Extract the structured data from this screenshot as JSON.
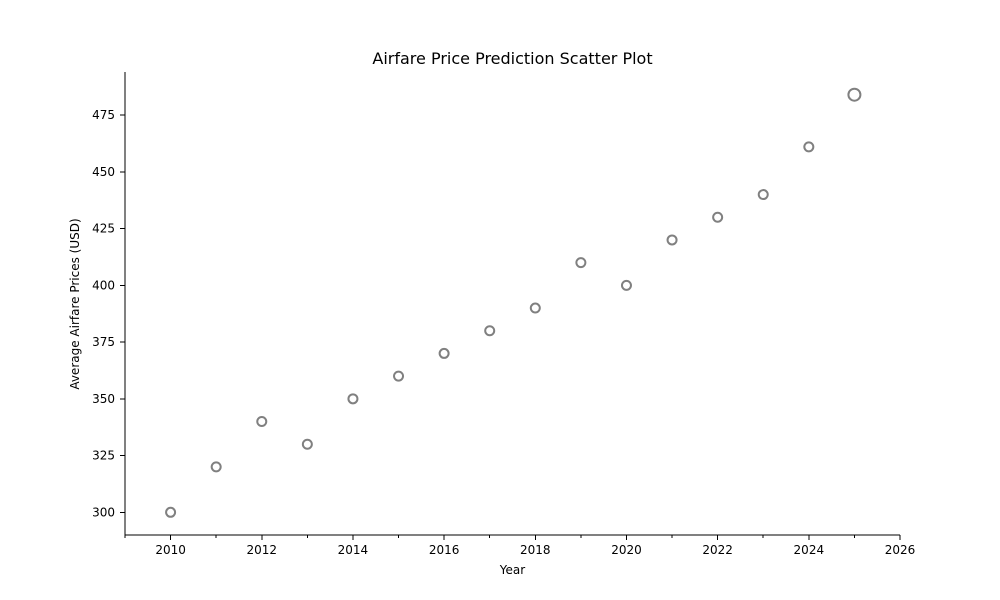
{
  "chart_data": {
    "type": "scatter",
    "title": "Airfare Price Prediction Scatter Plot",
    "xlabel": "Year",
    "ylabel": "Average Airfare Prices (USD)",
    "xlim": [
      2009,
      2026
    ],
    "ylim": [
      290,
      494
    ],
    "x_major_ticks": [
      2010,
      2012,
      2014,
      2016,
      2018,
      2020,
      2022,
      2024,
      2026
    ],
    "x_minor_ticks": [
      2009,
      2011,
      2013,
      2015,
      2017,
      2019,
      2021,
      2023,
      2025
    ],
    "y_ticks": [
      300,
      325,
      350,
      375,
      400,
      425,
      450,
      475
    ],
    "grid": false,
    "marker_color": "#808080",
    "series": [
      {
        "x": [
          2010,
          2011,
          2012,
          2013,
          2014,
          2015,
          2016,
          2017,
          2018,
          2019,
          2020,
          2021,
          2022,
          2023,
          2024,
          2025
        ],
        "y": [
          300,
          320,
          340,
          330,
          350,
          360,
          370,
          380,
          390,
          410,
          400,
          420,
          430,
          440,
          461,
          484
        ],
        "highlight_last": true
      }
    ]
  }
}
